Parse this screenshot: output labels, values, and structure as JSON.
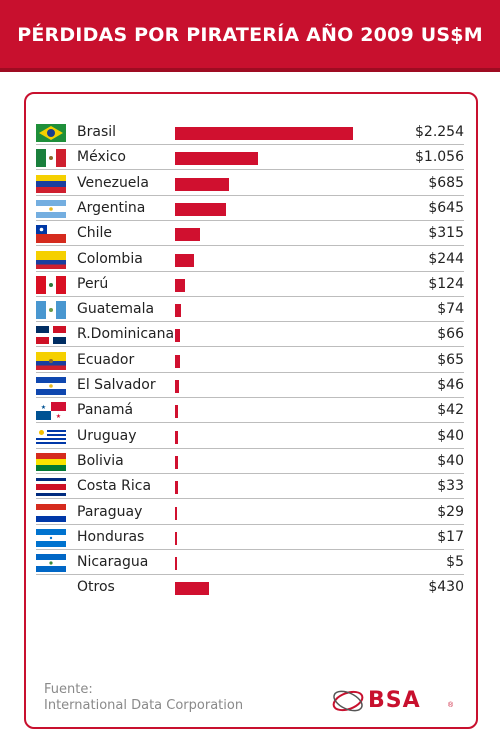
{
  "header": {
    "title": "PÉRDIDAS POR PIRATERÍA AÑO 2009 US$M"
  },
  "source": {
    "line1": "Fuente:",
    "line2": "International Data Corporation"
  },
  "logo": {
    "text": "BSA",
    "reg": "®"
  },
  "colors": {
    "brand": "#c8102e",
    "bar": "#d0102f"
  },
  "chart_data": {
    "type": "bar",
    "orientation": "horizontal",
    "title": "PÉRDIDAS POR PIRATERÍA AÑO 2009 US$M",
    "categories": [
      "Brasil",
      "México",
      "Venezuela",
      "Argentina",
      "Chile",
      "Colombia",
      "Perú",
      "Guatemala",
      "R.Dominicana",
      "Ecuador",
      "El Salvador",
      "Panamá",
      "Uruguay",
      "Bolivia",
      "Costa Rica",
      "Paraguay",
      "Honduras",
      "Nicaragua",
      "Otros"
    ],
    "values": [
      2254,
      1056,
      685,
      645,
      315,
      244,
      124,
      74,
      66,
      65,
      46,
      42,
      40,
      40,
      33,
      29,
      17,
      5,
      430
    ],
    "value_labels": [
      "$2.254",
      "$1.056",
      "$685",
      "$645",
      "$315",
      "$244",
      "$124",
      "$74",
      "$66",
      "$65",
      "$46",
      "$42",
      "$40",
      "$40",
      "$33",
      "$29",
      "$17",
      "$5",
      "$430"
    ],
    "flags": [
      "brazil-flag",
      "mexico-flag",
      "venezuela-flag",
      "argentina-flag",
      "chile-flag",
      "colombia-flag",
      "peru-flag",
      "guatemala-flag",
      "dominican-republic-flag",
      "ecuador-flag",
      "el-salvador-flag",
      "panama-flag",
      "uruguay-flag",
      "bolivia-flag",
      "costa-rica-flag",
      "paraguay-flag",
      "honduras-flag",
      "nicaragua-flag",
      ""
    ],
    "xlim": [
      0,
      2254
    ],
    "grid": false
  }
}
